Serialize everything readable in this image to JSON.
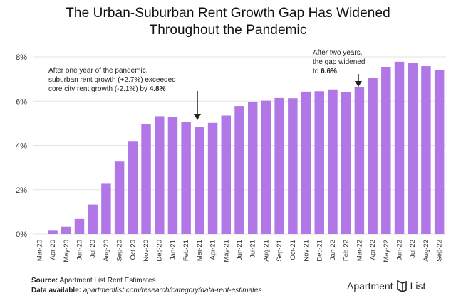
{
  "title_lines": [
    "The Urban-Suburban Rent Growth Gap Has Widened",
    "Throughout the Pandemic"
  ],
  "annotations": [
    {
      "line1": "After one year of the pandemic,",
      "line2": "suburban rent growth (+2.7%) exceeded",
      "line3_prefix": "core city rent growth (-2.1%) by ",
      "line3_bold": "4.8%"
    },
    {
      "line1": "After two years,",
      "line2": "the gap widened",
      "line3_prefix": "to ",
      "line3_bold": "6.6%"
    }
  ],
  "footer": {
    "source_label": "Source:",
    "source_text": "Apartment List Rent Estimates",
    "data_label": "Data available:",
    "data_text": "apartmentlist.com/research/category/data-rent-estimates"
  },
  "logo": {
    "word1": "Apartment",
    "word2": "List",
    "icon": "apartmentlist-logo-icon"
  },
  "colors": {
    "bar": "#b277e6",
    "grid": "#e3e3e3",
    "text": "#222222"
  },
  "chart_data": {
    "type": "bar",
    "title": "The Urban-Suburban Rent Growth Gap Has Widened Throughout the Pandemic",
    "xlabel": "",
    "ylabel": "",
    "ylim": [
      0,
      8
    ],
    "y_ticks": [
      0,
      2,
      4,
      6,
      8
    ],
    "y_tick_labels": [
      "0%",
      "2%",
      "4%",
      "6%",
      "8%"
    ],
    "grid": true,
    "categories": [
      "Mar-20",
      "Apr-20",
      "May-20",
      "Jun-20",
      "Jul-20",
      "Aug-20",
      "Sep-20",
      "Oct-20",
      "Nov-20",
      "Dec-20",
      "Jan-21",
      "Feb-21",
      "Mar-21",
      "Apr-21",
      "May-21",
      "Jun-21",
      "Jul-21",
      "Aug-21",
      "Sep-21",
      "Oct-21",
      "Nov-21",
      "Dec-21",
      "Jan-22",
      "Feb-22",
      "Mar-22",
      "Apr-22",
      "May-22",
      "Jun-22",
      "Jul-22",
      "Aug-22",
      "Sep-22"
    ],
    "values": [
      0.0,
      0.15,
      0.33,
      0.68,
      1.33,
      2.3,
      3.27,
      4.2,
      4.98,
      5.32,
      5.3,
      5.05,
      4.82,
      5.02,
      5.35,
      5.78,
      5.95,
      6.02,
      6.14,
      6.13,
      6.43,
      6.45,
      6.53,
      6.4,
      6.62,
      7.05,
      7.55,
      7.78,
      7.72,
      7.58,
      7.4
    ]
  }
}
